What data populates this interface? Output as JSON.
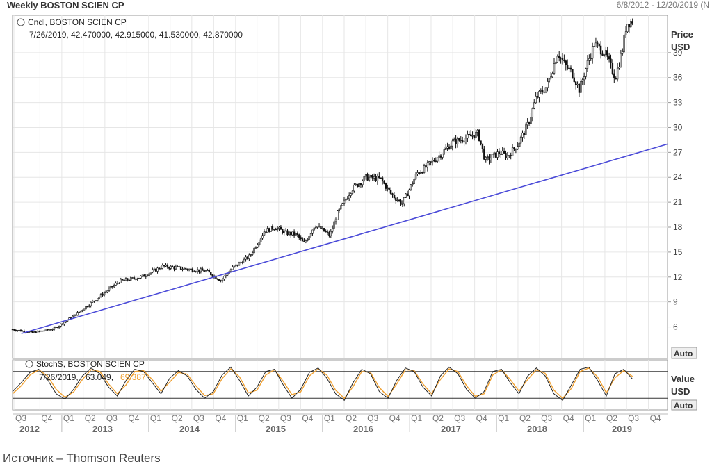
{
  "header": {
    "title": "Weekly BOSTON SCIEN CP",
    "date_range": "6/8/2012 - 12/20/2019 (N"
  },
  "caption": "Источник – Thomson Reuters",
  "price_panel": {
    "legend_name": "Cndl, BOSTON SCIEN CP",
    "legend_values": "7/26/2019, 42.470000, 42.915000, 41.530000, 42.870000",
    "axis_title_1": "Price",
    "axis_title_2": "USD",
    "auto_label": "Auto"
  },
  "stoch_panel": {
    "legend_name": "StochS, BOSTON SCIEN CP",
    "legend_date": "7/26/2019,",
    "legend_v1": "63.049,",
    "legend_v2": "69.387",
    "axis_title_1": "Value",
    "axis_title_2": "USD",
    "auto_label": "Auto"
  },
  "colors": {
    "candles": "#111111",
    "trendline": "#4a4ad8",
    "stoch_k": "#222222",
    "stoch_d": "#f0a030",
    "grid": "#e6e6e6"
  },
  "chart_data": [
    {
      "type": "line",
      "subtype": "candlestick",
      "title": "Weekly BOSTON SCIEN CP",
      "ylabel": "Price USD",
      "y_ticks": [
        6,
        9,
        12,
        15,
        18,
        21,
        24,
        27,
        30,
        33,
        36,
        39
      ],
      "ylim": [
        2.2,
        43.5
      ],
      "grid": true,
      "x_quarters": [
        "Q3",
        "Q4",
        "Q1",
        "Q2",
        "Q3",
        "Q4",
        "Q1",
        "Q2",
        "Q3",
        "Q4",
        "Q1",
        "Q2",
        "Q3",
        "Q4",
        "Q1",
        "Q2",
        "Q3",
        "Q4",
        "Q1",
        "Q2",
        "Q3",
        "Q4",
        "Q1",
        "Q2",
        "Q3",
        "Q4",
        "Q1",
        "Q2",
        "Q3",
        "Q4"
      ],
      "x_years": [
        "2012",
        "2013",
        "2014",
        "2015",
        "2016",
        "2017",
        "2018",
        "2019"
      ],
      "series": [
        {
          "name": "Cndl, BOSTON SCIEN CP",
          "x": [
            "2012-06-08",
            "2012-09-01",
            "2012-12-01",
            "2013-03-01",
            "2013-06-01",
            "2013-09-01",
            "2013-12-01",
            "2014-03-01",
            "2014-06-01",
            "2014-09-01",
            "2014-11-01",
            "2014-12-15",
            "2015-03-01",
            "2015-05-01",
            "2015-06-15",
            "2015-08-01",
            "2015-09-15",
            "2015-10-15",
            "2015-12-01",
            "2016-02-01",
            "2016-03-01",
            "2016-05-01",
            "2016-07-01",
            "2016-09-01",
            "2016-10-15",
            "2016-12-01",
            "2017-02-01",
            "2017-03-01",
            "2017-05-01",
            "2017-07-01",
            "2017-09-01",
            "2017-10-15",
            "2017-11-15",
            "2018-01-15",
            "2018-02-15",
            "2018-04-01",
            "2018-05-15",
            "2018-06-15",
            "2018-08-01",
            "2018-09-15",
            "2018-10-15",
            "2018-11-15",
            "2018-12-15",
            "2019-01-15",
            "2019-02-15",
            "2019-04-01",
            "2019-05-15",
            "2019-06-15",
            "2019-07-01",
            "2019-07-26"
          ],
          "values": [
            5.7,
            5.3,
            5.8,
            7.5,
            9.5,
            11.5,
            12.0,
            13.3,
            13.0,
            12.7,
            11.6,
            13.0,
            14.5,
            17.5,
            18.0,
            17.3,
            17.1,
            16.0,
            18.3,
            17.0,
            19.5,
            22.5,
            24.0,
            23.8,
            22.0,
            20.8,
            24.5,
            25.0,
            26.5,
            28.2,
            28.8,
            29.3,
            26.0,
            27.0,
            26.5,
            28.0,
            30.5,
            33.5,
            35.0,
            39.0,
            37.5,
            36.5,
            34.5,
            37.5,
            40.0,
            39.0,
            36.0,
            39.5,
            42.5,
            42.87
          ]
        },
        {
          "name": "Trendline",
          "x": [
            "2012-07-15",
            "2019-12-20"
          ],
          "values": [
            5.2,
            28.0
          ]
        }
      ]
    },
    {
      "type": "line",
      "title": "StochS, BOSTON SCIEN CP",
      "ylabel": "Value USD",
      "ylim": [
        0,
        100
      ],
      "reference_lines": [
        80,
        20
      ],
      "series": [
        {
          "name": "63.049",
          "values": [
            35,
            55,
            78,
            85,
            62,
            30,
            18,
            40,
            70,
            88,
            75,
            45,
            25,
            60,
            85,
            80,
            55,
            30,
            65,
            82,
            70,
            40,
            20,
            35,
            72,
            90,
            60,
            25,
            45,
            80,
            85,
            50,
            20,
            40,
            78,
            88,
            65,
            30,
            15,
            55,
            85,
            75,
            35,
            20,
            60,
            88,
            80,
            45,
            25,
            70,
            90,
            75,
            40,
            20,
            35,
            80,
            85,
            55,
            30,
            70,
            88,
            70,
            30,
            15,
            50,
            85,
            90,
            60,
            25,
            75,
            85,
            63
          ]
        },
        {
          "name": "69.387",
          "values": [
            30,
            48,
            72,
            84,
            70,
            40,
            22,
            34,
            62,
            84,
            80,
            52,
            30,
            50,
            80,
            82,
            62,
            36,
            56,
            78,
            74,
            48,
            26,
            30,
            64,
            86,
            68,
            32,
            38,
            72,
            84,
            58,
            28,
            34,
            70,
            86,
            72,
            38,
            20,
            46,
            80,
            78,
            44,
            24,
            52,
            84,
            82,
            52,
            30,
            62,
            86,
            80,
            48,
            24,
            30,
            72,
            84,
            62,
            36,
            62,
            84,
            76,
            38,
            20,
            42,
            80,
            88,
            68,
            32,
            66,
            82,
            69
          ]
        }
      ]
    }
  ]
}
